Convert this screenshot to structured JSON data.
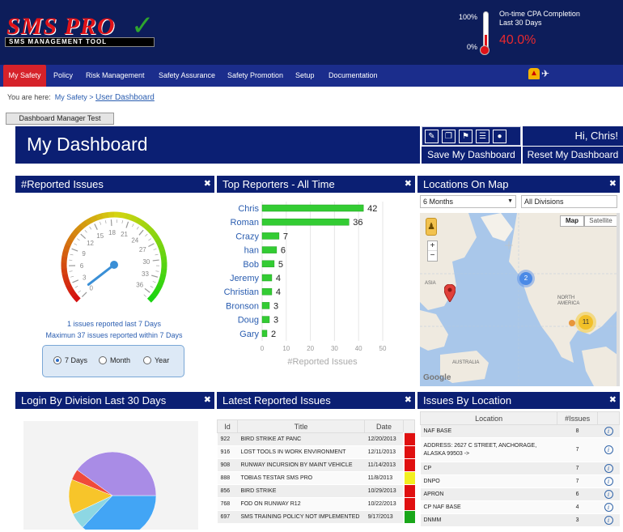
{
  "header": {
    "logo_text": "SMS PRO",
    "logo_subtitle": "SMS MANAGEMENT TOOL",
    "cpa_max_label": "100%",
    "cpa_min_label": "0%",
    "cpa_label_line1": "On-time CPA Completion",
    "cpa_label_line2": "Last 30 Days",
    "cpa_value": "40.0%",
    "cpa_fraction": 0.4
  },
  "nav": {
    "items": [
      "My Safety",
      "Policy",
      "Risk Management",
      "Safety Assurance",
      "Safety Promotion",
      "Setup",
      "Documentation"
    ],
    "alert_icon": "alert-bell-icon",
    "plane_icon": "airplane-icon"
  },
  "breadcrumb": {
    "prefix": "You are here:",
    "root": "My Safety",
    "separator": ">",
    "current": "User Dashboard"
  },
  "dashboard_manager_button": "Dashboard Manager Test",
  "page_title": "My Dashboard",
  "greeting": "Hi, Chris!",
  "save_button": "Save My Dashboard",
  "reset_button": "Reset My Dashboard",
  "toolbar_icons": [
    "edit-icon",
    "copy-icon",
    "flag-icon",
    "document-icon",
    "user-icon"
  ],
  "panels": {
    "reported_issues": {
      "title": "#Reported Issues",
      "gauge_ticks": [
        "0",
        "3",
        "6",
        "9",
        "12",
        "15",
        "18",
        "21",
        "24",
        "27",
        "30",
        "33",
        "36"
      ],
      "gauge_value": 1,
      "gauge_max": 37,
      "note1": "1 issues reported last 7 Days",
      "note2": "Maximun 37 issues reported within 7 Days",
      "range_options": [
        "7 Days",
        "Month",
        "Year"
      ],
      "range_selected": "7 Days"
    },
    "top_reporters": {
      "title": "Top Reporters - All Time"
    },
    "locations_map": {
      "title": "Locations On Map",
      "period_select": "6 Months",
      "division_select": "All Divisions",
      "map_button": "Map",
      "satellite_button": "Satellite",
      "labels": [
        "ASIA",
        "NORTH AMERICA",
        "AUSTRALIA",
        "Google"
      ],
      "cluster_a": "2",
      "cluster_b": "11",
      "zoom_in": "+",
      "zoom_out": "−"
    },
    "login_division": {
      "title": "Login By Division Last 30 Days"
    },
    "latest_issues": {
      "title": "Latest Reported Issues",
      "columns": [
        "Id",
        "Title",
        "Date"
      ],
      "rows": [
        {
          "id": "922",
          "title": "BIRD STRIKE AT PANC",
          "date": "12/20/2013",
          "color": "#e01010"
        },
        {
          "id": "916",
          "title": "LOST TOOLS IN WORK ENVIRONMENT",
          "date": "12/11/2013",
          "color": "#e01010"
        },
        {
          "id": "908",
          "title": "RUNWAY INCURSION BY MAINT VEHICLE",
          "date": "11/14/2013",
          "color": "#e01010"
        },
        {
          "id": "888",
          "title": "TOBIAS TESTAR SMS PRO",
          "date": "11/8/2013",
          "color": "#f2ef20"
        },
        {
          "id": "856",
          "title": "BIRD STRIKE",
          "date": "10/29/2013",
          "color": "#e01010"
        },
        {
          "id": "768",
          "title": "FOD ON RUNWAY R12",
          "date": "10/22/2013",
          "color": "#e01010"
        },
        {
          "id": "697",
          "title": "SMS TRAINING POLICY NOT IMPLEMENTED",
          "date": "9/17/2013",
          "color": "#1aa71a"
        }
      ]
    },
    "issues_location": {
      "title": "Issues By Location",
      "columns": [
        "Location",
        "#Issues"
      ],
      "rows": [
        {
          "location": "NAF BASE",
          "count": "8"
        },
        {
          "location": "ADDRESS: 2627 C STREET, ANCHORAGE, ALASKA 99503 ->",
          "count": "7"
        },
        {
          "location": "CP",
          "count": "7"
        },
        {
          "location": "DNPO",
          "count": "7"
        },
        {
          "location": "APRON",
          "count": "6"
        },
        {
          "location": "CP NAF BASE",
          "count": "4"
        },
        {
          "location": "DNMM",
          "count": "3"
        }
      ]
    }
  },
  "chart_data": [
    {
      "type": "bar",
      "orientation": "horizontal",
      "categories": [
        "Chris",
        "Roman",
        "Crazy",
        "han",
        "Bob",
        "Jeremy",
        "Christian",
        "Bronson",
        "Doug",
        "Gary"
      ],
      "values": [
        42,
        36,
        7,
        6,
        5,
        4,
        4,
        3,
        3,
        2
      ],
      "xlabel": "#Reported Issues",
      "xticks": [
        "0",
        "10",
        "20",
        "30",
        "40",
        "50"
      ],
      "xlim": [
        0,
        50
      ],
      "color": "#33cc33"
    },
    {
      "type": "pie",
      "slices": [
        {
          "value": 37,
          "color": "#42a5f5"
        },
        {
          "value": 6,
          "color": "#8dd7e3"
        },
        {
          "value": 13,
          "color": "#f7c52a"
        },
        {
          "value": 4,
          "color": "#f04a3a"
        },
        {
          "value": 40,
          "color": "#a98ce6"
        }
      ]
    }
  ]
}
